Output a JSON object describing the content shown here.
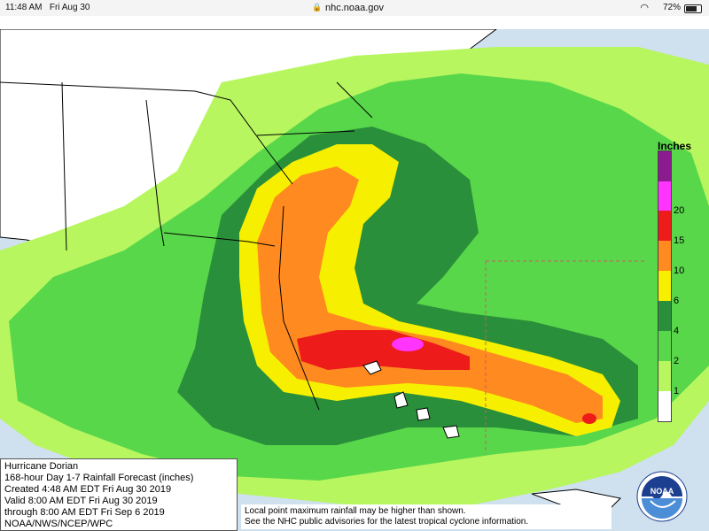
{
  "status_bar": {
    "time": "11:48 AM",
    "date": "Fri Aug 30",
    "url": "nhc.noaa.gov",
    "battery_percent": "72%",
    "battery_level": 0.72
  },
  "legend": {
    "title": "Inches",
    "items": [
      {
        "label": "1",
        "color": "#b7f65f"
      },
      {
        "label": "2",
        "color": "#59d74a"
      },
      {
        "label": "4",
        "color": "#2a8f3a"
      },
      {
        "label": "6",
        "color": "#f6f000"
      },
      {
        "label": "10",
        "color": "#ff8a1f"
      },
      {
        "label": "15",
        "color": "#ee1b1b"
      },
      {
        "label": "20",
        "color": "#ff35ff"
      },
      {
        "label": "",
        "color": "#8b1b8f"
      }
    ],
    "bottom_color": "#ffffff"
  },
  "info": {
    "line1": "Hurricane Dorian",
    "line2": "168-hour Day 1-7 Rainfall Forecast (inches)",
    "line3": "Created 4:48 AM EDT Fri Aug 30 2019",
    "line4": "Valid 8:00 AM EDT Fri Aug 30 2019",
    "line5": "through 8:00 AM EDT Fri Sep 6 2019",
    "line6": "NOAA/NWS/NCEP/WPC"
  },
  "note": {
    "line1": "Local point maximum rainfall may be higher than shown.",
    "line2": "See the NHC public advisories for the latest tropical cyclone information."
  },
  "logo": {
    "text": "NOAA"
  },
  "colors": {
    "ocean": "#cfe0ee",
    "land": "#ffffff",
    "light_green": "#b7f65f",
    "green": "#59d74a",
    "dark_green": "#2a8f3a",
    "yellow": "#f6f000",
    "orange": "#ff8a1f",
    "red": "#ee1b1b",
    "magenta": "#ff35ff"
  }
}
